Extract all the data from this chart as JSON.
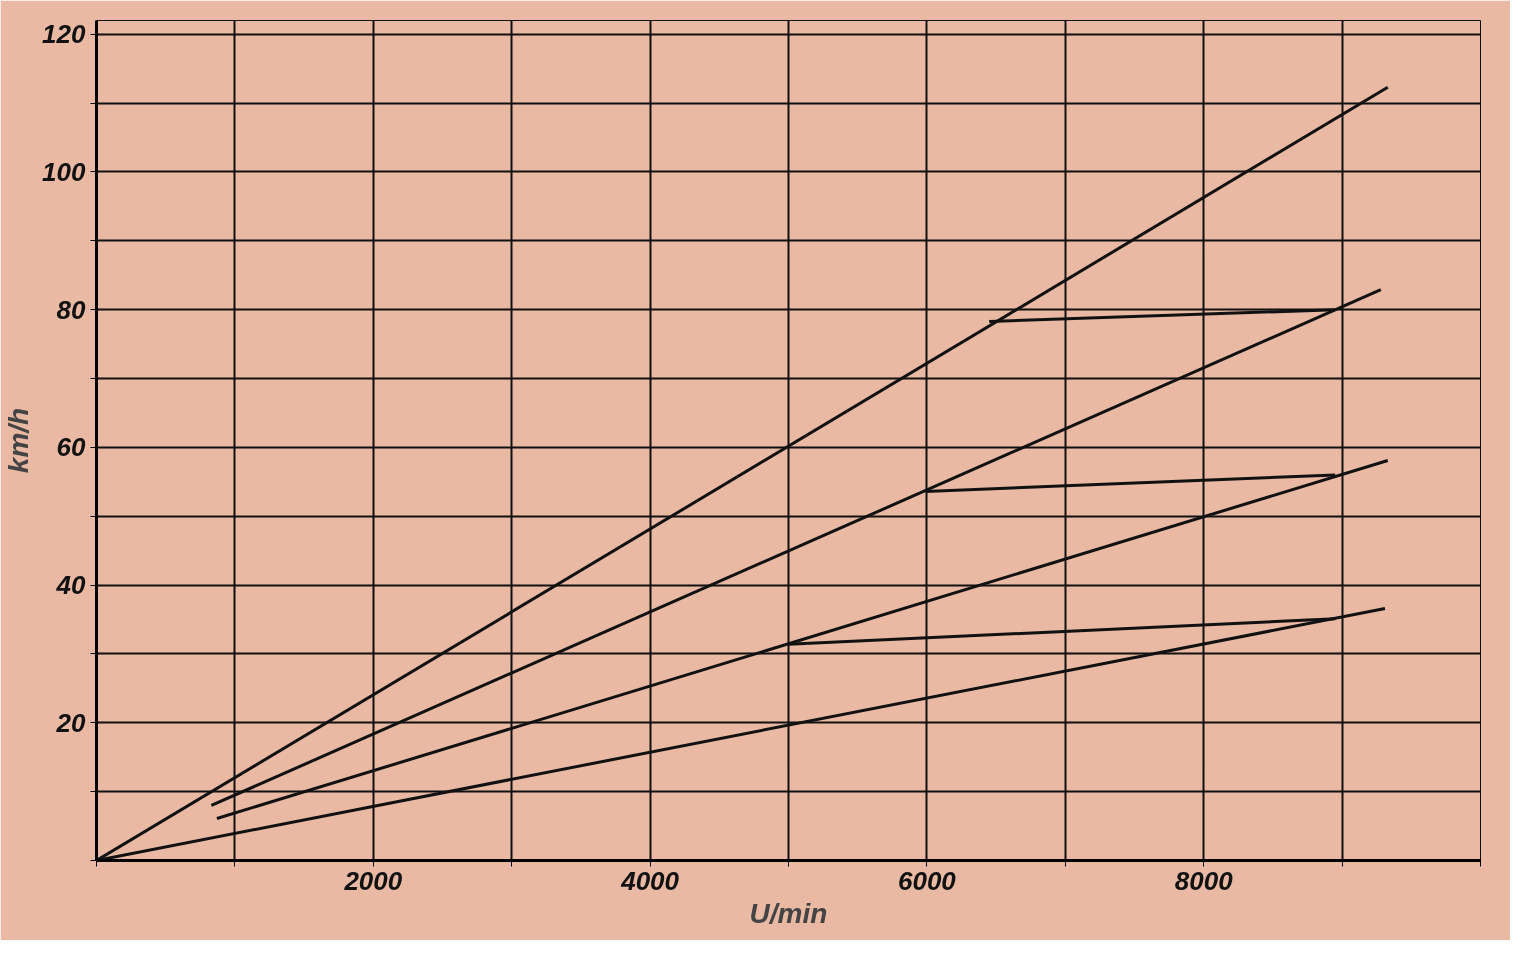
{
  "chart_data": {
    "type": "line",
    "xlabel": "U/min",
    "ylabel": "km/h",
    "xlim": [
      0,
      10000
    ],
    "ylim": [
      0,
      122
    ],
    "xticks": [
      {
        "value": 0,
        "label": null
      },
      {
        "value": 1000,
        "label": null
      },
      2000,
      {
        "value": 3000,
        "label": null
      },
      4000,
      {
        "value": 5000,
        "label": null
      },
      6000,
      {
        "value": 7000,
        "label": null
      },
      8000,
      {
        "value": 9000,
        "label": null
      },
      {
        "value": 10000,
        "label": null
      }
    ],
    "yticks": [
      {
        "value": 0,
        "label": null
      },
      {
        "value": 10,
        "label": null
      },
      20,
      {
        "value": 30,
        "label": null
      },
      40,
      {
        "value": 50,
        "label": null
      },
      60,
      {
        "value": 70,
        "label": null
      },
      80,
      {
        "value": 90,
        "label": null
      },
      100,
      {
        "value": 110,
        "label": null
      },
      120
    ],
    "grid": true,
    "marker": "none",
    "line_style": "solid",
    "series": [
      {
        "color": "#111111",
        "x": [
          0,
          9310
        ],
        "values": [
          0,
          36.6
        ]
      },
      {
        "color": "#111111",
        "x": [
          870,
          9330
        ],
        "values": [
          6.1,
          58.1
        ]
      },
      {
        "color": "#111111",
        "x": [
          830,
          9280
        ],
        "values": [
          8.0,
          82.9
        ]
      },
      {
        "color": "#111111",
        "x": [
          0,
          9330
        ],
        "values": [
          0,
          112.3
        ]
      },
      {
        "color": "#111111",
        "x": [
          5000,
          8950
        ],
        "values": [
          31.4,
          35.1
        ]
      },
      {
        "color": "#111111",
        "x": [
          5990,
          8950
        ],
        "values": [
          53.6,
          56.0
        ]
      },
      {
        "color": "#111111",
        "x": [
          6450,
          8950
        ],
        "values": [
          78.3,
          80.0
        ]
      }
    ]
  }
}
